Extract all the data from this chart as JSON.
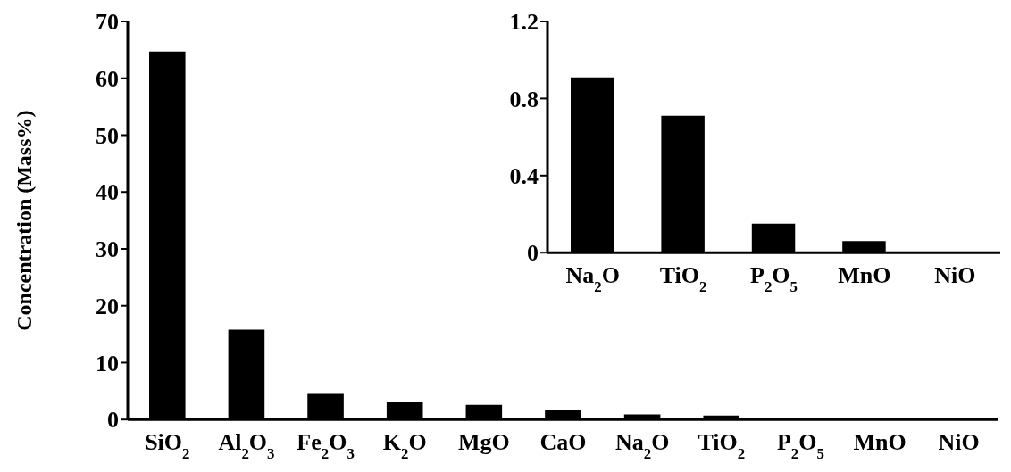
{
  "chart_data": [
    {
      "type": "bar",
      "ylabel": "Concentration (Mass%)",
      "categories": [
        "SiO$_{2}$",
        "Al$_{2}$O$_{3}$",
        "Fe$_{2}$O$_{3}$",
        "K$_{2}$O",
        "MgO",
        "CaO",
        "Na$_{2}$O",
        "TiO$_{2}$",
        "P$_{2}$O$_{5}$",
        "MnO",
        "NiO"
      ],
      "values": [
        64.7,
        15.8,
        4.5,
        3.0,
        2.6,
        1.6,
        0.9,
        0.7,
        0.15,
        0.06,
        0.01
      ],
      "color": "#000000",
      "ylim": [
        0,
        70
      ],
      "yticks": [
        0,
        10,
        20,
        30,
        40,
        50,
        60,
        70
      ]
    },
    {
      "type": "bar",
      "categories": [
        "Na$_{2}$O",
        "TiO$_{2}$",
        "P$_{2}$O$_{5}$",
        "MnO",
        "NiO"
      ],
      "values": [
        0.91,
        0.71,
        0.15,
        0.06,
        0.005
      ],
      "color": "#000000",
      "ylim": [
        0,
        1.2
      ],
      "yticks": [
        0,
        {
          "value": 0.4,
          "label": "0.4"
        },
        {
          "value": 0.8,
          "label": "0.8"
        },
        {
          "value": 1.2,
          "label": "1.2"
        }
      ]
    }
  ]
}
